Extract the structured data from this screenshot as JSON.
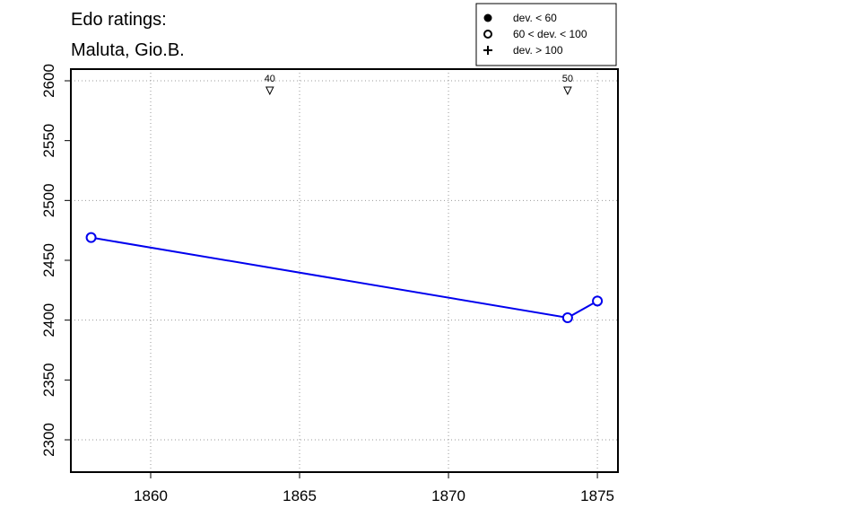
{
  "chart_data": {
    "type": "line",
    "title": [
      "Edo ratings:",
      "Maluta, Gio.B."
    ],
    "x": [
      1858,
      1874,
      1875
    ],
    "series": [
      {
        "color": "#0000ee",
        "marker": "open",
        "values": [
          2469,
          2402,
          2416
        ]
      }
    ],
    "xlim": [
      1857.32,
      1875.69
    ],
    "xticks": [
      1860,
      1865,
      1870,
      1875
    ],
    "ylim": [
      2273,
      2609.75
    ],
    "yticks": [
      2300,
      2350,
      2400,
      2450,
      2500,
      2550,
      2600
    ],
    "grid_x": [
      1860,
      1865,
      1870,
      1875
    ],
    "grid_y": [
      2300,
      2400,
      2500,
      2600
    ],
    "age_markers": {
      "x": [
        1864,
        1874
      ],
      "labels": [
        40,
        50
      ]
    },
    "legend": [
      {
        "symbol": "filled",
        "label": "dev. < 60"
      },
      {
        "symbol": "open",
        "label": "60 < dev. < 100"
      },
      {
        "symbol": "plus",
        "label": "dev. > 100"
      }
    ]
  }
}
